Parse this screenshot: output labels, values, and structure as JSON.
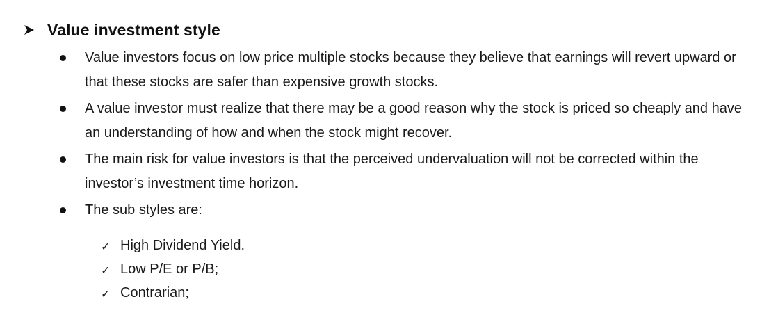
{
  "heading": {
    "title": "Value investment style"
  },
  "bullets": [
    {
      "text": "Value investors focus on low price multiple stocks because they believe that earnings will revert upward or that these stocks are safer than expensive growth stocks."
    },
    {
      "text": "A value investor must realize that there may be a good reason why the stock is priced so cheaply and have an understanding of how and when the stock might recover."
    },
    {
      "text": "The main risk for value investors is that the perceived undervaluation will not be corrected within the investor’s investment time horizon."
    },
    {
      "text": "The sub styles are:"
    }
  ],
  "sub_styles": [
    {
      "text": "High Dividend Yield."
    },
    {
      "text": "Low P/E or P/B;"
    },
    {
      "text": "Contrarian;"
    }
  ],
  "icons": {
    "heading_marker": "arrow-right-icon",
    "bullet_marker": "bullet-dot-icon",
    "sub_marker": "checkmark-icon",
    "checkmark_glyph": "✓"
  }
}
